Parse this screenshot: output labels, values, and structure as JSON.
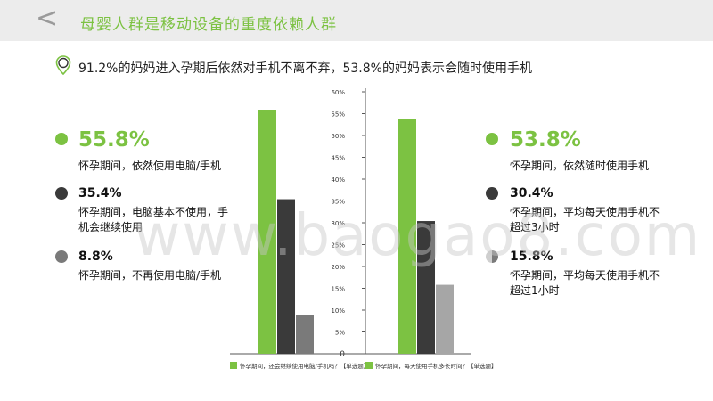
{
  "header": {
    "back_icon": "chevron-left-icon",
    "title": "母婴人群是移动设备的重度依赖人群"
  },
  "subtitle": "91.2%的妈妈进入孕期后依然对手机不离不弃，53.8%的妈妈表示会随时使用手机",
  "colors": {
    "green": "#7cc242",
    "dark": "#3a3a3a",
    "gray": "#7a7a7a",
    "light": "#a6a6a6"
  },
  "left_stats": [
    {
      "value": "55.8%",
      "text": "怀孕期间，依然使用电脑/手机"
    },
    {
      "value": "35.4%",
      "text": "怀孕期间，电脑基本不使用，手机会继续使用"
    },
    {
      "value": "8.8%",
      "text": "怀孕期间，不再使用电脑/手机"
    }
  ],
  "right_stats": [
    {
      "value": "53.8%",
      "text": "怀孕期间，依然随时使用手机"
    },
    {
      "value": "30.4%",
      "text": "怀孕期间，平均每天使用手机不超过3小时"
    },
    {
      "value": "15.8%",
      "text": "怀孕期间，平均每天使用手机不超过1小时"
    }
  ],
  "chart_data": {
    "type": "bar",
    "ylim": [
      0,
      60
    ],
    "yticks": [
      "0",
      "5%",
      "10%",
      "15%",
      "20%",
      "25%",
      "30%",
      "35%",
      "40%",
      "45%",
      "50%",
      "55%",
      "60%"
    ],
    "grid": false,
    "groups": [
      {
        "values": [
          55.8,
          35.4,
          8.8
        ],
        "legend": "怀孕期间，还会继续使用电脑/手机吗？【单选题】"
      },
      {
        "values": [
          53.8,
          30.4,
          15.8
        ],
        "legend": "怀孕期间，每天使用手机多长时间？【单选题】"
      }
    ]
  },
  "watermark": "www.baogao8.com"
}
